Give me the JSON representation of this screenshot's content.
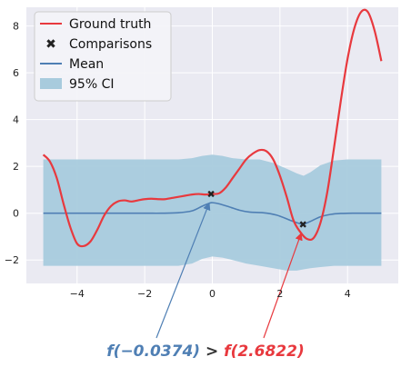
{
  "chart_data": {
    "type": "line",
    "title": "",
    "xlabel": "",
    "ylabel": "",
    "xlim": [
      -5.5,
      5.5
    ],
    "ylim": [
      -3.0,
      8.8
    ],
    "xticks": [
      -4,
      -2,
      0,
      2,
      4
    ],
    "yticks": [
      -2,
      0,
      2,
      4,
      6,
      8
    ],
    "grid": true,
    "legend_position": "top-left",
    "legend": [
      {
        "label": "Ground truth",
        "kind": "line",
        "color": "#e8393e"
      },
      {
        "label": "Comparisons",
        "kind": "marker-x",
        "color": "#222222"
      },
      {
        "label": "Mean",
        "kind": "line",
        "color": "#4f7fb4"
      },
      {
        "label": "95% CI",
        "kind": "patch",
        "color": "#a8cbdd"
      }
    ],
    "series": [
      {
        "name": "Ground truth",
        "color": "#e8393e",
        "x": [
          -5.0,
          -4.8,
          -4.6,
          -4.4,
          -4.2,
          -4.0,
          -3.8,
          -3.6,
          -3.4,
          -3.2,
          -3.0,
          -2.8,
          -2.6,
          -2.4,
          -2.2,
          -2.0,
          -1.8,
          -1.6,
          -1.4,
          -1.2,
          -1.0,
          -0.8,
          -0.6,
          -0.4,
          -0.2,
          0.0,
          0.2,
          0.4,
          0.6,
          0.8,
          1.0,
          1.2,
          1.4,
          1.6,
          1.8,
          2.0,
          2.2,
          2.4,
          2.6,
          2.8,
          3.0,
          3.2,
          3.4,
          3.6,
          3.8,
          4.0,
          4.2,
          4.4,
          4.6,
          4.8,
          5.0
        ],
        "y": [
          2.5,
          2.2,
          1.5,
          0.4,
          -0.6,
          -1.3,
          -1.4,
          -1.2,
          -0.7,
          -0.1,
          0.3,
          0.5,
          0.55,
          0.5,
          0.55,
          0.6,
          0.62,
          0.6,
          0.6,
          0.65,
          0.7,
          0.75,
          0.8,
          0.82,
          0.8,
          0.82,
          0.85,
          1.1,
          1.5,
          1.9,
          2.3,
          2.55,
          2.7,
          2.65,
          2.3,
          1.6,
          0.7,
          -0.3,
          -0.8,
          -1.1,
          -1.05,
          -0.4,
          0.9,
          2.8,
          4.8,
          6.6,
          7.9,
          8.6,
          8.6,
          7.8,
          6.5
        ]
      },
      {
        "name": "Mean",
        "color": "#4f7fb4",
        "x": [
          -5.0,
          -4.0,
          -3.0,
          -2.0,
          -1.5,
          -1.0,
          -0.6,
          -0.3,
          -0.1,
          0.0,
          0.2,
          0.5,
          0.8,
          1.1,
          1.5,
          1.9,
          2.3,
          2.6,
          2.7,
          2.9,
          3.2,
          3.5,
          3.8,
          4.2,
          5.0
        ],
        "y": [
          0.0,
          0.0,
          0.0,
          0.0,
          0.0,
          0.02,
          0.1,
          0.3,
          0.42,
          0.45,
          0.4,
          0.27,
          0.13,
          0.05,
          0.02,
          -0.08,
          -0.3,
          -0.45,
          -0.47,
          -0.35,
          -0.15,
          -0.05,
          -0.01,
          0.0,
          0.0
        ]
      }
    ],
    "ci_band": {
      "name": "95% CI",
      "color": "#a8cbdd",
      "x": [
        -5.0,
        -4.0,
        -3.0,
        -2.0,
        -1.5,
        -1.0,
        -0.6,
        -0.3,
        0.0,
        0.3,
        0.6,
        1.0,
        1.4,
        1.8,
        2.2,
        2.5,
        2.7,
        2.9,
        3.2,
        3.6,
        4.0,
        5.0
      ],
      "lower": [
        -2.25,
        -2.25,
        -2.25,
        -2.25,
        -2.25,
        -2.25,
        -2.15,
        -1.95,
        -1.85,
        -1.9,
        -2.0,
        -2.15,
        -2.25,
        -2.35,
        -2.45,
        -2.45,
        -2.4,
        -2.35,
        -2.3,
        -2.25,
        -2.25,
        -2.25
      ],
      "upper": [
        2.3,
        2.3,
        2.3,
        2.3,
        2.3,
        2.3,
        2.35,
        2.45,
        2.5,
        2.45,
        2.35,
        2.3,
        2.3,
        2.15,
        1.9,
        1.7,
        1.6,
        1.75,
        2.05,
        2.25,
        2.3,
        2.3
      ]
    },
    "comparisons": [
      {
        "x": -0.0374,
        "y": 0.82
      },
      {
        "x": 2.6822,
        "y": -0.47
      }
    ],
    "annotation": {
      "prefix": "f(",
      "left_value": "−0.0374",
      "close_left": ")",
      "operator": " > ",
      "right_prefix": "f(",
      "right_value": "2.6822",
      "close_right": ")",
      "left_color": "#4f7fb4",
      "right_color": "#e8393e"
    }
  }
}
